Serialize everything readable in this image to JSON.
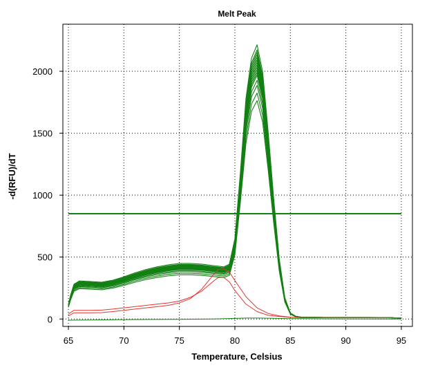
{
  "chart_data": {
    "type": "line",
    "title": "Melt Peak",
    "xlabel": "Temperature, Celsius",
    "ylabel": "-d(RFU)/dT",
    "xlim": [
      64.5,
      96
    ],
    "ylim": [
      -60,
      2380
    ],
    "x_ticks": [
      65,
      70,
      75,
      80,
      85,
      90,
      95
    ],
    "y_ticks": [
      0,
      500,
      1000,
      1500,
      2000
    ],
    "grid": true,
    "colors": {
      "sample": "#138013",
      "negative": "#e8322e",
      "threshold": "#138013",
      "baseline": "#138013"
    },
    "threshold": 850,
    "green_template": {
      "x": [
        65,
        65.2,
        65.5,
        66,
        67,
        68,
        69,
        70,
        71,
        72,
        73,
        74,
        75,
        76,
        77,
        78,
        79,
        79.5,
        80,
        80.5,
        81,
        81.5,
        82,
        82.5,
        83,
        83.5,
        84,
        84.5,
        85,
        85.5,
        86,
        88,
        90,
        92,
        94,
        95
      ],
      "y": [
        110,
        180,
        260,
        285,
        280,
        275,
        290,
        315,
        345,
        370,
        390,
        405,
        415,
        415,
        410,
        400,
        390,
        410,
        600,
        1100,
        1650,
        1950,
        2050,
        1850,
        1400,
        900,
        450,
        160,
        45,
        20,
        14,
        12,
        12,
        12,
        11,
        6
      ]
    },
    "green_scales": [
      0.86,
      0.89,
      0.92,
      0.94,
      0.96,
      0.97,
      0.98,
      0.99,
      1.0,
      1.01,
      1.02,
      1.03,
      1.04,
      1.05,
      1.06,
      1.08
    ],
    "series": [
      {
        "color": "red",
        "x": [
          65,
          65.5,
          66,
          67,
          68,
          69,
          70,
          71,
          72,
          73,
          74,
          75,
          76,
          77,
          78,
          78.5,
          79,
          79.5,
          80,
          81,
          82,
          83,
          84,
          85,
          86,
          88,
          90,
          92,
          95
        ],
        "y": [
          40,
          70,
          70,
          70,
          72,
          80,
          90,
          100,
          110,
          120,
          130,
          145,
          175,
          225,
          300,
          335,
          335,
          300,
          230,
          120,
          60,
          30,
          20,
          14,
          10,
          10,
          10,
          10,
          10
        ]
      },
      {
        "color": "red",
        "x": [
          65,
          65.5,
          66,
          67,
          68,
          69,
          70,
          71,
          72,
          73,
          74,
          75,
          76,
          77,
          78,
          78.5,
          79,
          79.5,
          80,
          81,
          82,
          83,
          84,
          85,
          86,
          88,
          90,
          92,
          95
        ],
        "y": [
          25,
          50,
          50,
          50,
          52,
          60,
          70,
          80,
          90,
          100,
          110,
          130,
          165,
          240,
          350,
          400,
          405,
          380,
          310,
          180,
          90,
          45,
          25,
          15,
          12,
          11,
          11,
          11,
          10
        ]
      },
      {
        "color": "green",
        "x": [
          65,
          67,
          70,
          74,
          78,
          80,
          81,
          82,
          83,
          85,
          90,
          95
        ],
        "y": [
          -10,
          -8,
          -5,
          -3,
          0,
          5,
          8,
          8,
          6,
          3,
          1,
          0
        ]
      }
    ]
  }
}
